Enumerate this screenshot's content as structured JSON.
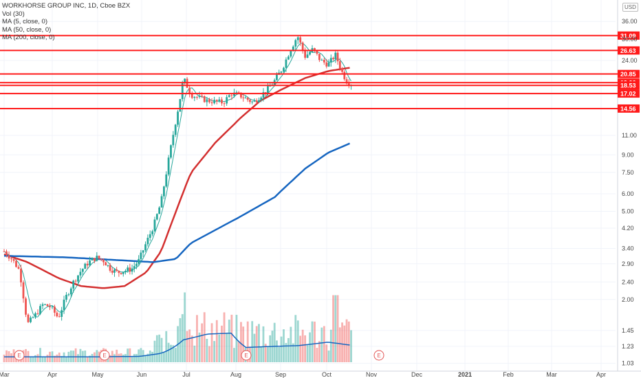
{
  "chart_data": {
    "type": "candlestick",
    "title": "WORKHORSE GROUP INC, 1D, Cboe BZX",
    "currency_label": "USD",
    "indicators": [
      "Vol (30)",
      "MA (5, close, 0)",
      "MA (50, close, 0)",
      "MA (200, close, 0)"
    ],
    "scale": "log",
    "ylim": [
      0.95,
      45
    ],
    "y_ticks": [
      "36.00",
      "30.00",
      "24.00",
      "11.00",
      "9.00",
      "7.50",
      "6.00",
      "5.00",
      "4.20",
      "3.40",
      "2.90",
      "2.40",
      "2.00",
      "1.45",
      "1.23",
      "1.03"
    ],
    "x_ticks": [
      "Mar",
      "Apr",
      "May",
      "Jun",
      "Jul",
      "Aug",
      "Sep",
      "Oct",
      "Nov",
      "Dec",
      "2021",
      "Feb",
      "Mar",
      "Apr"
    ],
    "levels": [
      {
        "value": 31.09,
        "label": "31.09"
      },
      {
        "value": 26.63,
        "label": "26.63"
      },
      {
        "value": 20.85,
        "label": "20.85"
      },
      {
        "value": 19.06,
        "label": "19.06"
      },
      {
        "value": 18.53,
        "label": "18.53"
      },
      {
        "value": 17.02,
        "label": "17.02"
      },
      {
        "value": 14.56,
        "label": "14.56"
      }
    ],
    "earnings_markers": [
      {
        "date": "Mar",
        "label": "E"
      },
      {
        "date": "May",
        "label": "E"
      },
      {
        "date": "Aug",
        "label": "E"
      },
      {
        "date": "Nov",
        "label": "E"
      }
    ],
    "price_anchors": [
      {
        "d": 0,
        "c": 3.3
      },
      {
        "d": 5,
        "c": 3.05
      },
      {
        "d": 10,
        "c": 2.7
      },
      {
        "d": 15,
        "c": 1.55
      },
      {
        "d": 20,
        "c": 1.7
      },
      {
        "d": 25,
        "c": 1.9
      },
      {
        "d": 30,
        "c": 1.85
      },
      {
        "d": 35,
        "c": 1.65
      },
      {
        "d": 40,
        "c": 2.05
      },
      {
        "d": 45,
        "c": 2.4
      },
      {
        "d": 50,
        "c": 2.7
      },
      {
        "d": 55,
        "c": 2.95
      },
      {
        "d": 60,
        "c": 3.1
      },
      {
        "d": 65,
        "c": 3.0
      },
      {
        "d": 70,
        "c": 2.75
      },
      {
        "d": 75,
        "c": 2.65
      },
      {
        "d": 80,
        "c": 2.7
      },
      {
        "d": 85,
        "c": 2.75
      },
      {
        "d": 90,
        "c": 3.0
      },
      {
        "d": 95,
        "c": 3.6
      },
      {
        "d": 100,
        "c": 4.3
      },
      {
        "d": 105,
        "c": 5.5
      },
      {
        "d": 110,
        "c": 8.5
      },
      {
        "d": 113,
        "c": 11.0
      },
      {
        "d": 118,
        "c": 16.5
      },
      {
        "d": 120,
        "c": 20.0
      },
      {
        "d": 125,
        "c": 16.8
      },
      {
        "d": 135,
        "c": 15.8
      },
      {
        "d": 145,
        "c": 15.5
      },
      {
        "d": 150,
        "c": 17.0
      },
      {
        "d": 155,
        "c": 16.8
      },
      {
        "d": 165,
        "c": 15.5
      },
      {
        "d": 175,
        "c": 17.8
      },
      {
        "d": 180,
        "c": 19.5
      },
      {
        "d": 185,
        "c": 22.0
      },
      {
        "d": 190,
        "c": 26.5
      },
      {
        "d": 195,
        "c": 31.0
      },
      {
        "d": 200,
        "c": 25.0
      },
      {
        "d": 205,
        "c": 27.0
      },
      {
        "d": 210,
        "c": 24.0
      },
      {
        "d": 215,
        "c": 23.0
      },
      {
        "d": 220,
        "c": 25.5
      },
      {
        "d": 225,
        "c": 21.0
      },
      {
        "d": 228,
        "c": 19.3
      },
      {
        "d": 231,
        "c": 18.8
      }
    ],
    "ma200": [
      {
        "d": 0,
        "v": 3.15
      },
      {
        "d": 40,
        "v": 3.1
      },
      {
        "d": 80,
        "v": 3.0
      },
      {
        "d": 100,
        "v": 2.95
      },
      {
        "d": 115,
        "v": 3.05
      },
      {
        "d": 125,
        "v": 3.6
      },
      {
        "d": 150,
        "v": 4.5
      },
      {
        "d": 180,
        "v": 5.8
      },
      {
        "d": 200,
        "v": 7.8
      },
      {
        "d": 215,
        "v": 9.2
      },
      {
        "d": 231,
        "v": 10.2
      }
    ],
    "ma50": [
      {
        "d": 0,
        "v": 3.2
      },
      {
        "d": 15,
        "v": 2.95
      },
      {
        "d": 35,
        "v": 2.5
      },
      {
        "d": 50,
        "v": 2.3
      },
      {
        "d": 65,
        "v": 2.25
      },
      {
        "d": 80,
        "v": 2.3
      },
      {
        "d": 95,
        "v": 2.65
      },
      {
        "d": 105,
        "v": 3.3
      },
      {
        "d": 115,
        "v": 5.0
      },
      {
        "d": 125,
        "v": 7.5
      },
      {
        "d": 140,
        "v": 10.2
      },
      {
        "d": 155,
        "v": 13.0
      },
      {
        "d": 170,
        "v": 15.8
      },
      {
        "d": 185,
        "v": 17.8
      },
      {
        "d": 200,
        "v": 20.0
      },
      {
        "d": 215,
        "v": 21.5
      },
      {
        "d": 231,
        "v": 22.3
      }
    ],
    "volume_ma": [
      {
        "d": 0,
        "v": 0.12
      },
      {
        "d": 60,
        "v": 0.12
      },
      {
        "d": 90,
        "v": 0.13
      },
      {
        "d": 105,
        "v": 0.2
      },
      {
        "d": 120,
        "v": 0.5
      },
      {
        "d": 135,
        "v": 0.63
      },
      {
        "d": 150,
        "v": 0.65
      },
      {
        "d": 160,
        "v": 0.33
      },
      {
        "d": 175,
        "v": 0.35
      },
      {
        "d": 195,
        "v": 0.37
      },
      {
        "d": 215,
        "v": 0.45
      },
      {
        "d": 231,
        "v": 0.38
      }
    ]
  }
}
